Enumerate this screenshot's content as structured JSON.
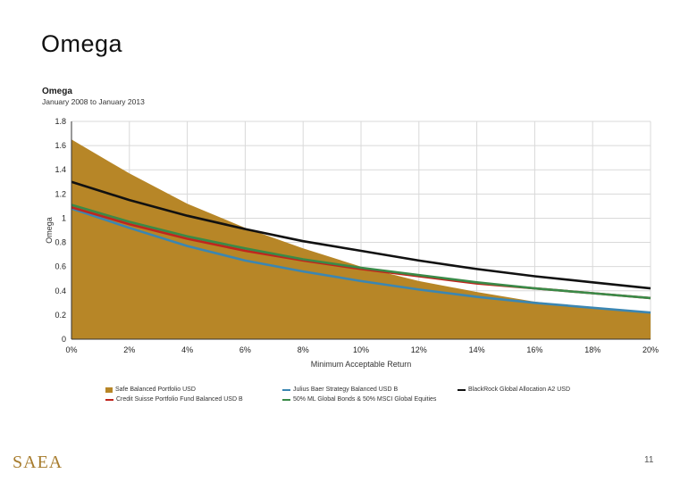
{
  "slide": {
    "title": "Omega",
    "page_number": "11",
    "logo_text": "SAEA"
  },
  "colors": {
    "area": "#b78627",
    "julius": "#3b86b2",
    "blackrock": "#111111",
    "credit_suisse": "#c0251e",
    "benchmark": "#3a8a48",
    "grid": "#d9d9d9"
  },
  "chart_data": {
    "type": "area",
    "title": "Omega",
    "subtitle": "January 2008 to January 2013",
    "xlabel": "Minimum Acceptable Return",
    "ylabel": "Omega",
    "x": [
      0,
      2,
      4,
      6,
      8,
      10,
      12,
      14,
      16,
      18,
      20
    ],
    "x_tick_labels": [
      "0%",
      "2%",
      "4%",
      "6%",
      "8%",
      "10%",
      "12%",
      "14%",
      "16%",
      "18%",
      "20%"
    ],
    "y_ticks": [
      0,
      0.2,
      0.4,
      0.6,
      0.8,
      1,
      1.2,
      1.4,
      1.6,
      1.8
    ],
    "y_tick_labels": [
      "0",
      "0.2",
      "0.4",
      "0.6",
      "0.8",
      "1",
      "1.2",
      "1.4",
      "1.6",
      "1.8"
    ],
    "xlim": [
      0,
      20
    ],
    "ylim": [
      0,
      1.8
    ],
    "grid": true,
    "legend_position": "bottom",
    "series": [
      {
        "name": "Safe Balanced Portfolio USD",
        "style": "area",
        "color_key": "area",
        "values": [
          1.65,
          1.37,
          1.12,
          0.92,
          0.75,
          0.6,
          0.48,
          0.39,
          0.31,
          0.26,
          0.22
        ]
      },
      {
        "name": "Julius Baer Strategy Balanced USD B",
        "style": "line",
        "color_key": "julius",
        "values": [
          1.08,
          0.92,
          0.77,
          0.65,
          0.56,
          0.48,
          0.41,
          0.35,
          0.3,
          0.26,
          0.22
        ]
      },
      {
        "name": "BlackRock Global Allocation A2 USD",
        "style": "line",
        "color_key": "blackrock",
        "values": [
          1.3,
          1.15,
          1.02,
          0.91,
          0.81,
          0.73,
          0.65,
          0.58,
          0.52,
          0.47,
          0.42
        ]
      },
      {
        "name": "Credit Suisse Portfolio Fund Balanced USD B",
        "style": "line",
        "color_key": "credit_suisse",
        "values": [
          1.09,
          0.95,
          0.83,
          0.73,
          0.65,
          0.58,
          0.52,
          0.46,
          0.42,
          0.38,
          0.34
        ]
      },
      {
        "name": "50% ML Global Bonds & 50% MSCI Global Equities",
        "style": "line",
        "color_key": "benchmark",
        "values": [
          1.11,
          0.97,
          0.85,
          0.75,
          0.66,
          0.59,
          0.53,
          0.47,
          0.42,
          0.38,
          0.34
        ]
      }
    ]
  }
}
